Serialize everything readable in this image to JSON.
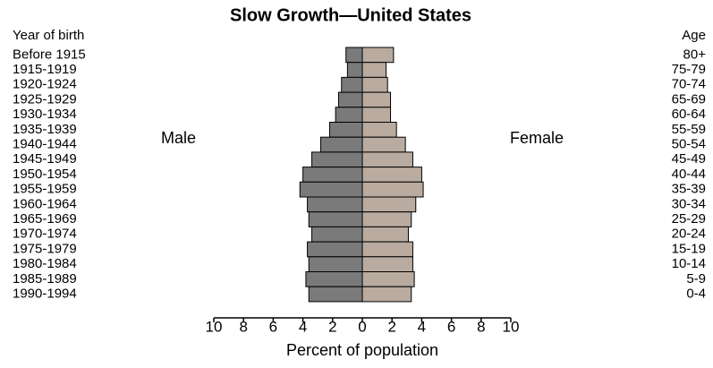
{
  "chart_data": {
    "type": "pyramid",
    "title": "Slow Growth—United States",
    "left_header": "Year of birth",
    "right_header": "Age",
    "categories": [
      "Before 1915",
      "1915-1919",
      "1920-1924",
      "1925-1929",
      "1930-1934",
      "1935-1939",
      "1940-1944",
      "1945-1949",
      "1950-1954",
      "1955-1959",
      "1960-1964",
      "1965-1969",
      "1970-1974",
      "1975-1979",
      "1980-1984",
      "1985-1989",
      "1990-1994"
    ],
    "age_groups": [
      "80+",
      "75-79",
      "70-74",
      "65-69",
      "60-64",
      "55-59",
      "50-54",
      "45-49",
      "40-44",
      "35-39",
      "30-34",
      "25-29",
      "20-24",
      "15-19",
      "10-14",
      "5-9",
      "0-4"
    ],
    "series": [
      {
        "name": "Male",
        "side": "left",
        "color": "#7a7a7a",
        "values": [
          1.1,
          1.0,
          1.4,
          1.6,
          1.8,
          2.2,
          2.8,
          3.4,
          4.0,
          4.2,
          3.7,
          3.6,
          3.4,
          3.7,
          3.6,
          3.8,
          3.6
        ]
      },
      {
        "name": "Female",
        "side": "right",
        "color": "#b9ab9f",
        "values": [
          2.1,
          1.6,
          1.7,
          1.9,
          1.9,
          2.3,
          2.9,
          3.4,
          4.0,
          4.1,
          3.6,
          3.3,
          3.1,
          3.4,
          3.4,
          3.5,
          3.3
        ]
      }
    ],
    "xlabel": "Percent of population",
    "xlim": [
      0,
      10
    ],
    "xticks": [
      0,
      2,
      4,
      6,
      8,
      10
    ]
  }
}
